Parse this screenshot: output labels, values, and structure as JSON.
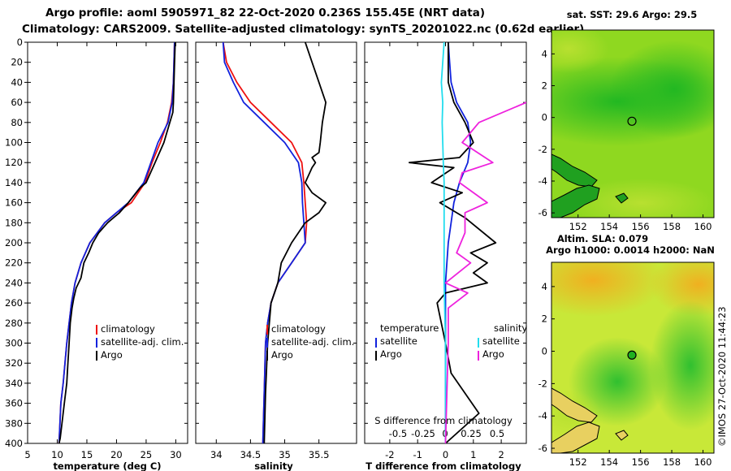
{
  "header": {
    "line1": "Argo profile: aoml 5905971_82 22-Oct-2020 0.236S 155.45E (NRT data)",
    "line2": "Climatology: CARS2009. Satellite-adjusted climatology: synTS_20201022.nc (0.62d earlier)"
  },
  "watermark": "©IMOS 27-Oct-2020 11:44:23",
  "colors": {
    "climatology": "#ee1111",
    "satellite": "#1122dd",
    "argo": "#000000",
    "salinity_satellite": "#22ddee",
    "salinity_argo": "#ee22dd"
  },
  "chart_data": [
    {
      "type": "line",
      "id": "temperature",
      "xlabel": "temperature (deg C)",
      "xlim": [
        5,
        32
      ],
      "xticks": [
        5,
        10,
        15,
        20,
        25,
        30
      ],
      "ylim": [
        0,
        400
      ],
      "yticks": [
        0,
        20,
        40,
        60,
        80,
        100,
        120,
        140,
        160,
        180,
        200,
        220,
        240,
        260,
        280,
        300,
        320,
        340,
        360,
        380,
        400
      ],
      "legend": [
        "climatology",
        "satellite-adj. clim.",
        "Argo"
      ],
      "series": [
        {
          "name": "climatology",
          "x": [
            29.8,
            29.7,
            29.6,
            29.3,
            28.6,
            27.4,
            26.0,
            24.8,
            22.5,
            20.0,
            18.0,
            15.5,
            14.0,
            13.0,
            12.4,
            12.0,
            11.6,
            11.3,
            11.0,
            10.6,
            10.3
          ],
          "y": [
            0,
            20,
            40,
            60,
            80,
            100,
            120,
            140,
            160,
            170,
            180,
            200,
            220,
            240,
            260,
            280,
            300,
            320,
            340,
            360,
            400
          ]
        },
        {
          "name": "satellite-adj. clim.",
          "x": [
            29.8,
            29.7,
            29.6,
            29.4,
            28.7,
            27.0,
            25.8,
            24.6,
            22.0,
            20.0,
            18.0,
            15.5,
            14.0,
            13.0,
            12.4,
            12.0,
            11.6,
            11.3,
            11.0,
            10.6,
            10.3
          ],
          "y": [
            0,
            20,
            40,
            60,
            80,
            100,
            120,
            140,
            160,
            170,
            180,
            200,
            220,
            240,
            260,
            280,
            300,
            320,
            340,
            360,
            400
          ]
        },
        {
          "name": "Argo",
          "x": [
            29.9,
            29.8,
            29.7,
            29.6,
            29.5,
            29.0,
            28.0,
            26.5,
            25.0,
            24.0,
            22.0,
            20.5,
            19.5,
            18.5,
            17.0,
            16.0,
            15.3,
            14.5,
            14.0,
            13.2,
            12.8,
            12.5,
            12.2,
            12.0,
            11.8,
            11.6,
            11.2,
            10.8,
            10.5,
            10.3
          ],
          "y": [
            0,
            20,
            40,
            60,
            70,
            80,
            100,
            120,
            140,
            145,
            160,
            170,
            175,
            180,
            190,
            200,
            210,
            220,
            235,
            245,
            255,
            265,
            280,
            300,
            320,
            340,
            360,
            380,
            395,
            400
          ]
        }
      ]
    },
    {
      "type": "line",
      "id": "salinity",
      "xlabel": "salinity",
      "xlim": [
        33.7,
        36.05
      ],
      "xticks": [
        34,
        34.5,
        35,
        35.5
      ],
      "ylim": [
        0,
        400
      ],
      "legend": [
        "climatology",
        "satellite-adj. clim.",
        "Argo"
      ],
      "series": [
        {
          "name": "climatology",
          "x": [
            34.1,
            34.15,
            34.3,
            34.5,
            34.8,
            35.1,
            35.25,
            35.28,
            35.3,
            35.32,
            35.3,
            35.1,
            34.9,
            34.8,
            34.75,
            34.72,
            34.7,
            34.68
          ],
          "y": [
            0,
            20,
            40,
            60,
            80,
            100,
            120,
            140,
            160,
            180,
            200,
            220,
            240,
            260,
            280,
            300,
            350,
            400
          ]
        },
        {
          "name": "satellite-adj. clim.",
          "x": [
            34.1,
            34.12,
            34.25,
            34.4,
            34.7,
            35.0,
            35.2,
            35.25,
            35.26,
            35.28,
            35.3,
            35.1,
            34.9,
            34.8,
            34.75,
            34.72,
            34.7,
            34.68
          ],
          "y": [
            0,
            20,
            40,
            60,
            80,
            100,
            120,
            140,
            160,
            180,
            200,
            220,
            240,
            260,
            280,
            300,
            350,
            400
          ]
        },
        {
          "name": "Argo",
          "x": [
            35.3,
            35.4,
            35.5,
            35.6,
            35.55,
            35.52,
            35.5,
            35.4,
            35.45,
            35.4,
            35.3,
            35.4,
            35.6,
            35.5,
            35.3,
            35.1,
            34.95,
            34.9,
            34.85,
            34.8,
            34.75,
            34.72,
            34.7
          ],
          "y": [
            0,
            20,
            40,
            60,
            80,
            100,
            110,
            115,
            120,
            125,
            140,
            150,
            160,
            170,
            180,
            200,
            220,
            240,
            250,
            260,
            300,
            350,
            400
          ]
        }
      ]
    },
    {
      "type": "line",
      "id": "difference",
      "xlabel": "T difference from climatology",
      "top_label": "S difference from climatology",
      "xlim": [
        -2.9,
        2.9
      ],
      "xticks": [
        -2,
        -1,
        0,
        1,
        2
      ],
      "top_ticks": [
        "-0.5",
        "-0.25",
        "0",
        "0.25",
        "0.5"
      ],
      "ylim": [
        0,
        400
      ],
      "legend_left_title": "temperature",
      "legend_right_title": "salinity",
      "legend_left": [
        "satellite",
        "Argo"
      ],
      "legend_right": [
        "satellite",
        "Argo"
      ],
      "series": [
        {
          "name": "T satellite",
          "x": [
            0.1,
            0.15,
            0.2,
            0.4,
            0.8,
            0.9,
            0.8,
            0.5,
            0.3,
            0.2,
            0.1,
            0.05,
            0.0,
            0.0,
            0.0,
            0.0,
            0.0
          ],
          "y": [
            0,
            20,
            40,
            60,
            80,
            100,
            120,
            140,
            160,
            180,
            200,
            220,
            240,
            260,
            300,
            350,
            400
          ]
        },
        {
          "name": "T Argo",
          "x": [
            0.1,
            0.1,
            0.1,
            0.3,
            0.7,
            1.0,
            0.5,
            -1.3,
            0.3,
            -0.5,
            0.6,
            -0.2,
            0.7,
            1.8,
            0.9,
            1.5,
            1.0,
            1.5,
            0.0,
            -0.3,
            0.0,
            0.2,
            1.2,
            0.0
          ],
          "y": [
            0,
            20,
            40,
            60,
            80,
            100,
            115,
            120,
            125,
            140,
            150,
            160,
            175,
            200,
            210,
            220,
            230,
            240,
            250,
            260,
            300,
            330,
            370,
            400
          ]
        },
        {
          "name": "S satellite",
          "x": [
            -0.05,
            -0.1,
            -0.15,
            -0.1,
            -0.12,
            -0.1,
            -0.08,
            -0.05,
            -0.05,
            -0.05,
            -0.05,
            0.0,
            0.0,
            0.0
          ],
          "y": [
            0,
            20,
            40,
            60,
            80,
            100,
            120,
            140,
            160,
            200,
            240,
            300,
            350,
            400
          ]
        },
        {
          "name": "S Argo",
          "x": [
            2.9,
            1.2,
            0.6,
            1.7,
            0.6,
            0.5,
            1.5,
            0.7,
            0.7,
            0.4,
            0.9,
            0.0,
            0.8,
            0.1,
            0.1,
            0.0
          ],
          "y": [
            60,
            80,
            100,
            120,
            130,
            140,
            160,
            170,
            190,
            210,
            220,
            240,
            250,
            265,
            300,
            400
          ]
        }
      ]
    },
    {
      "type": "heatmap",
      "id": "sst_map",
      "title": "sat. SST: 29.6 Argo: 29.5",
      "xlim": [
        150.3,
        160.7
      ],
      "ylim": [
        -6.3,
        5.5
      ],
      "xticks": [
        152,
        154,
        156,
        158,
        160
      ],
      "yticks": [
        -6,
        -4,
        -2,
        0,
        2,
        4
      ],
      "marker": {
        "lon": 155.45,
        "lat": -0.236
      }
    },
    {
      "type": "heatmap",
      "id": "sla_map",
      "title": "Argo h1000: 0.0014 h2000: NaN",
      "subtitle": "Altim. SLA: 0.079",
      "xlim": [
        150.3,
        160.7
      ],
      "ylim": [
        -6.3,
        5.5
      ],
      "xticks": [
        152,
        154,
        156,
        158,
        160
      ],
      "yticks": [
        -6,
        -4,
        -2,
        0,
        2,
        4
      ],
      "marker": {
        "lon": 155.45,
        "lat": -0.236
      }
    }
  ]
}
